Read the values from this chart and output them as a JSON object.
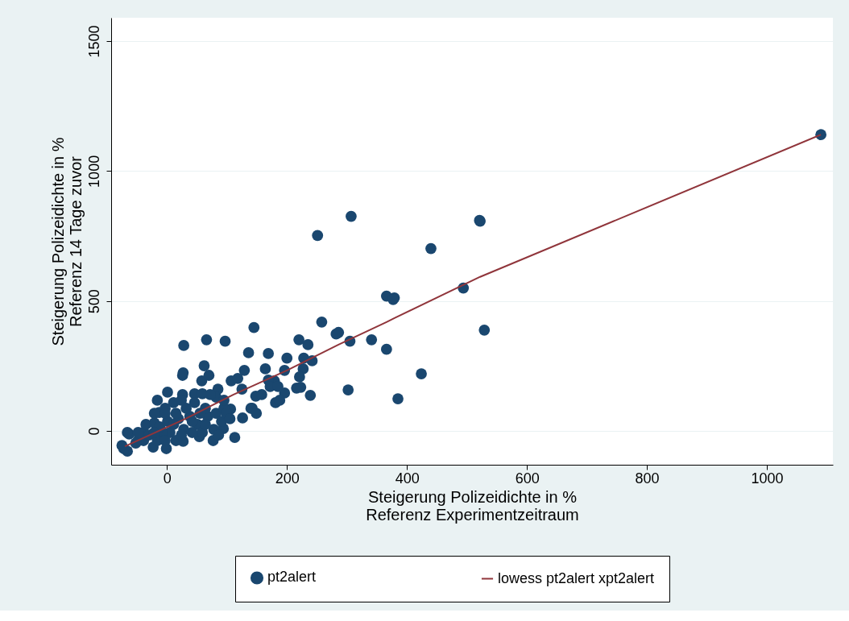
{
  "chart_data": {
    "type": "scatter",
    "xlabel": "Steigerung Polizeidichte in %\nReferenz Experimentzeitraum",
    "ylabel": "Steigerung Polizeidichte in %\nReferenz 14 Tage zuvor",
    "xlim": [
      -93,
      1110
    ],
    "ylim": [
      -130,
      1590
    ],
    "xticks": [
      0,
      200,
      400,
      600,
      800,
      1000
    ],
    "yticks": [
      0,
      500,
      1000,
      1500
    ],
    "grid": "y",
    "legend": "bottom",
    "marker": "circle",
    "series": [
      {
        "name": "pt2alert",
        "color": "#1a476f",
        "x": [
          1090,
          522,
          307,
          521,
          440,
          494,
          366,
          379,
          377,
          529,
          286,
          305,
          341,
          366,
          302,
          424,
          385,
          251,
          258,
          282,
          145,
          66,
          97,
          220,
          235,
          136,
          169,
          200,
          228,
          242,
          62,
          164,
          196,
          227,
          129,
          221,
          58,
          70,
          107,
          118,
          179,
          169,
          239,
          216,
          223,
          196,
          85,
          148,
          158,
          125,
          181,
          188,
          142,
          28,
          26,
          27,
          1,
          -16,
          -13,
          26,
          46,
          59,
          172,
          185,
          140,
          149,
          126,
          106,
          94,
          113,
          77,
          54,
          27,
          -1,
          -23,
          -66,
          -72,
          -63,
          -39,
          -48,
          -21,
          -21,
          -3,
          11,
          19,
          38,
          51,
          68,
          82,
          95,
          91,
          78,
          59,
          42,
          28,
          5,
          -8,
          15,
          -39,
          -52,
          -30,
          -12,
          1,
          -3,
          15,
          32,
          64,
          82,
          95,
          72,
          46,
          24,
          99,
          55,
          42,
          64,
          86,
          105,
          -16,
          -3,
          -66,
          24,
          11,
          -21,
          -35,
          -48,
          -75
        ],
        "values": [
          1140,
          807,
          826,
          810,
          702,
          550,
          519,
          512,
          506,
          388,
          379,
          345,
          351,
          314,
          158,
          220,
          124,
          752,
          419,
          373,
          398,
          351,
          345,
          351,
          332,
          301,
          298,
          280,
          280,
          270,
          251,
          239,
          233,
          239,
          233,
          208,
          193,
          214,
          193,
          202,
          193,
          196,
          137,
          165,
          168,
          146,
          161,
          134,
          140,
          161,
          109,
          118,
          87,
          329,
          214,
          224,
          149,
          118,
          71,
          140,
          143,
          143,
          171,
          171,
          87,
          68,
          50,
          84,
          9,
          -25,
          -37,
          -22,
          -40,
          -68,
          -62,
          -78,
          -68,
          -12,
          -6,
          -37,
          31,
          68,
          87,
          109,
          47,
          56,
          25,
          56,
          68,
          87,
          37,
          6,
          -6,
          -6,
          6,
          -6,
          -6,
          -37,
          -37,
          -47,
          -16,
          16,
          37,
          68,
          68,
          87,
          87,
          130,
          118,
          140,
          109,
          118,
          68,
          68,
          37,
          25,
          -16,
          47,
          -37,
          -37,
          -6,
          -16,
          25,
          -6,
          25,
          -6,
          -56
        ]
      },
      {
        "name": "lowess pt2alert xpt2alert",
        "type": "line",
        "marker": "none",
        "color": "#90353b",
        "x": [
          -70,
          31,
          111,
          200,
          286,
          366,
          380,
          522,
          1090
        ],
        "values": [
          -59,
          47,
          140,
          233,
          332,
          419,
          435,
          593,
          1140
        ]
      }
    ]
  }
}
